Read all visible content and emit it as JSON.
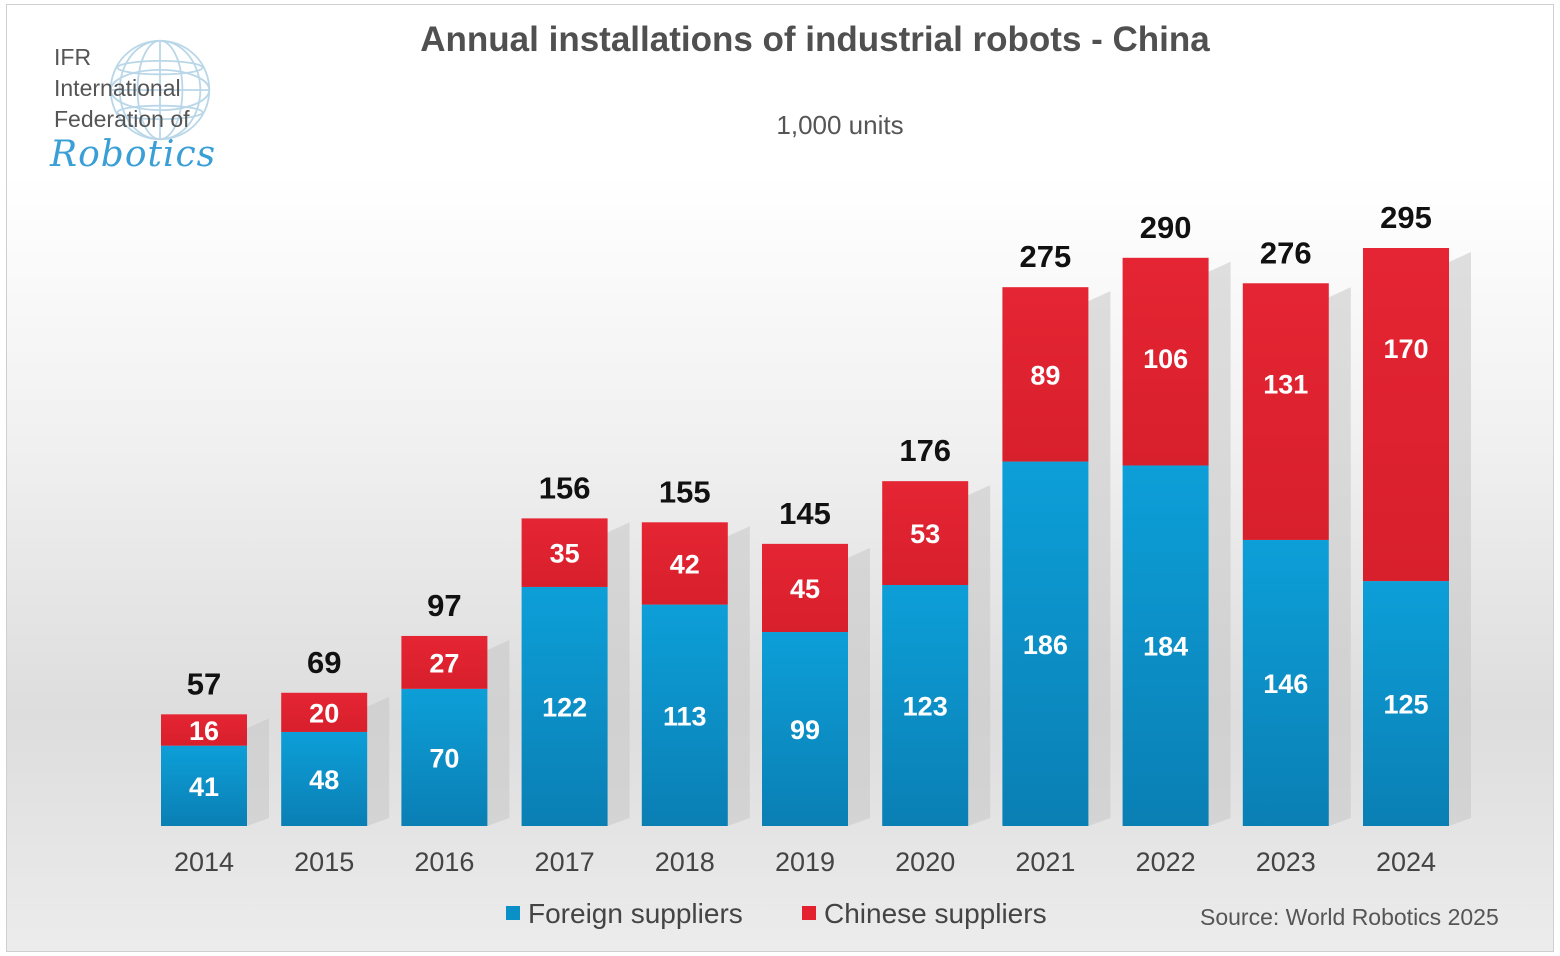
{
  "logo": {
    "line1": "IFR",
    "line2": "International",
    "line3": "Federation of",
    "script": "Robotics"
  },
  "chart_data": {
    "type": "bar",
    "stacked": true,
    "title": "Annual installations of industrial robots - China",
    "subtitle": "1,000 units",
    "categories": [
      "2014",
      "2015",
      "2016",
      "2017",
      "2018",
      "2019",
      "2020",
      "2021",
      "2022",
      "2023",
      "2024"
    ],
    "series": [
      {
        "name": "Foreign suppliers",
        "values": [
          41,
          48,
          70,
          122,
          113,
          99,
          123,
          186,
          184,
          146,
          125
        ],
        "color": "#0a8fc7"
      },
      {
        "name": "Chinese suppliers",
        "values": [
          16,
          20,
          27,
          35,
          42,
          45,
          53,
          89,
          106,
          131,
          170
        ],
        "color": "#e3212f"
      }
    ],
    "totals": [
      57,
      69,
      97,
      156,
      155,
      145,
      176,
      275,
      290,
      276,
      295
    ],
    "ylim": [
      0,
      295
    ],
    "grid": false,
    "legend_position": "bottom",
    "source": "Source: World Robotics 2025"
  }
}
